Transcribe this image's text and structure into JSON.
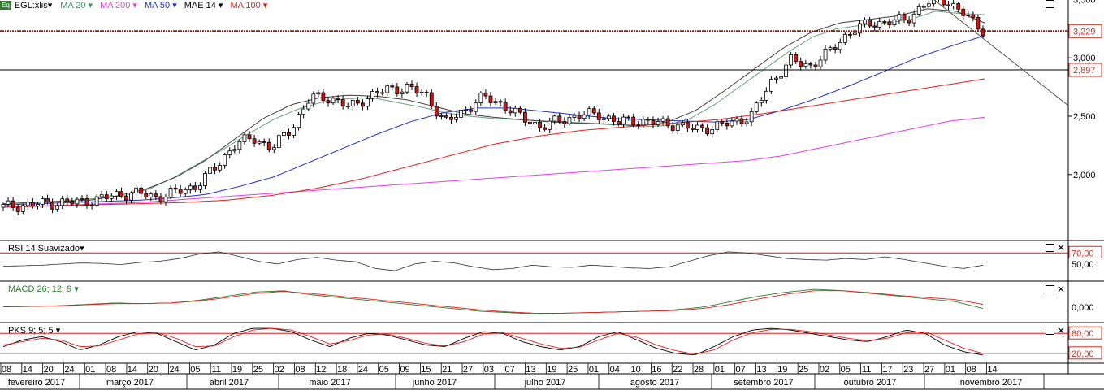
{
  "legend": {
    "badge": "Eq",
    "symbol": "EGL:xlis",
    "indicators": [
      {
        "label": "MA 20",
        "color": "#3a9a5a"
      },
      {
        "label": "MA 200",
        "color": "#e040e0"
      },
      {
        "label": "MA 50",
        "color": "#2030d0"
      },
      {
        "label": "MAE 14",
        "color": "#000000"
      },
      {
        "label": "MA 100",
        "color": "#e02020"
      }
    ]
  },
  "panels": {
    "rsi": {
      "title": "RSI 14 Suavizado",
      "levels": [
        "70,00",
        "50,00"
      ]
    },
    "macd": {
      "title": "MACD 26; 12; 9",
      "levels": [
        "0,000"
      ]
    },
    "pks": {
      "title": "PKS 9; 5; 5",
      "levels": [
        "80,00",
        "20,00"
      ]
    }
  },
  "chart_data": {
    "type": "candlestick",
    "y_ticks": [
      "3,500",
      "3,000",
      "2,500",
      "2,000"
    ],
    "price_tags": [
      {
        "label": "3,229",
        "value": 3.229,
        "color": "#d03020"
      },
      {
        "label": "2,897",
        "value": 2.897,
        "color": "#d03020"
      }
    ],
    "x_ticks": [
      "08",
      "14",
      "20",
      "24",
      "01",
      "08",
      "14",
      "20",
      "24",
      "05",
      "11",
      "19",
      "25",
      "02",
      "08",
      "12",
      "18",
      "24",
      "05",
      "09",
      "15",
      "21",
      "27",
      "03",
      "07",
      "13",
      "19",
      "25",
      "01",
      "04",
      "10",
      "16",
      "22",
      "28",
      "01",
      "07",
      "13",
      "19",
      "25",
      "02",
      "05",
      "11",
      "17",
      "23",
      "27",
      "01",
      "08",
      "14"
    ],
    "months": [
      "fevereiro 2017",
      "março 2017",
      "abril 2017",
      "maio 2017",
      "junho 2017",
      "julho 2017",
      "agosto 2017",
      "setembro 2017",
      "outubro 2017",
      "novembro 2017"
    ],
    "ohlc_anchors": [
      [
        1.72,
        1.73
      ],
      [
        1.74,
        1.73
      ],
      [
        1.75,
        1.75
      ],
      [
        1.76,
        1.76
      ],
      [
        1.77,
        1.76
      ],
      [
        1.78,
        1.8
      ],
      [
        1.84,
        1.82
      ],
      [
        1.86,
        1.82
      ],
      [
        1.8,
        1.81
      ],
      [
        1.84,
        1.86
      ],
      [
        1.88,
        1.92
      ],
      [
        2.0,
        2.1
      ],
      [
        2.2,
        2.3
      ],
      [
        2.35,
        2.28
      ],
      [
        2.2,
        2.25
      ],
      [
        2.35,
        2.45
      ],
      [
        2.62,
        2.7
      ],
      [
        2.7,
        2.62
      ],
      [
        2.55,
        2.6
      ],
      [
        2.65,
        2.68
      ],
      [
        2.72,
        2.74
      ],
      [
        2.75,
        2.74
      ],
      [
        2.72,
        2.65
      ],
      [
        2.5,
        2.38
      ],
      [
        2.45,
        2.65
      ],
      [
        2.68,
        2.65
      ],
      [
        2.62,
        2.58
      ],
      [
        2.52,
        2.45
      ],
      [
        2.42,
        2.4
      ],
      [
        2.45,
        2.48
      ],
      [
        2.5,
        2.52
      ],
      [
        2.53,
        2.5
      ],
      [
        2.48,
        2.42
      ],
      [
        2.46,
        2.47
      ],
      [
        2.46,
        2.42
      ],
      [
        2.44,
        2.42
      ],
      [
        2.4,
        2.37
      ],
      [
        2.4,
        2.42
      ],
      [
        2.43,
        2.46
      ],
      [
        2.48,
        2.55
      ],
      [
        2.7,
        2.9
      ],
      [
        2.95,
        3.0
      ],
      [
        2.96,
        2.9
      ],
      [
        3.0,
        3.1
      ],
      [
        3.18,
        3.25
      ],
      [
        3.28,
        3.3
      ],
      [
        3.3,
        3.32
      ],
      [
        3.3,
        3.35
      ],
      [
        3.38,
        3.55
      ],
      [
        3.52,
        3.48
      ],
      [
        3.45,
        3.3
      ],
      [
        3.25,
        3.229
      ]
    ],
    "series": [
      {
        "name": "MA 20",
        "anchors": [
          1.75,
          1.76,
          1.77,
          1.78,
          1.8,
          1.82,
          1.88,
          1.98,
          2.1,
          2.22,
          2.35,
          2.47,
          2.56,
          2.62,
          2.65,
          2.66,
          2.62,
          2.58,
          2.53,
          2.5,
          2.48,
          2.47,
          2.46,
          2.45,
          2.44,
          2.43,
          2.41,
          2.42,
          2.48,
          2.6,
          2.75,
          2.9,
          3.05,
          3.18,
          3.25,
          3.28,
          3.3,
          3.33,
          3.4,
          3.38,
          3.37
        ]
      },
      {
        "name": "MA 200",
        "anchors": [
          1.72,
          1.73,
          1.74,
          1.75,
          1.76,
          1.78,
          1.8,
          1.82,
          1.84,
          1.86,
          1.88,
          1.9,
          1.92,
          1.94,
          1.96,
          1.98,
          2.0,
          2.02,
          2.04,
          2.06,
          2.08,
          2.1,
          2.12,
          2.16,
          2.22,
          2.28,
          2.34,
          2.4,
          2.46,
          2.49
        ]
      },
      {
        "name": "MA 50",
        "anchors": [
          1.74,
          1.75,
          1.76,
          1.77,
          1.78,
          1.8,
          1.83,
          1.9,
          1.98,
          2.1,
          2.22,
          2.34,
          2.45,
          2.53,
          2.57,
          2.57,
          2.54,
          2.51,
          2.48,
          2.47,
          2.46,
          2.45,
          2.47,
          2.55,
          2.65,
          2.76,
          2.88,
          3.0,
          3.1,
          3.19
        ]
      },
      {
        "name": "MAE 14",
        "anchors": [
          1.75,
          1.76,
          1.77,
          1.78,
          1.82,
          1.88,
          1.98,
          2.12,
          2.3,
          2.48,
          2.6,
          2.66,
          2.68,
          2.67,
          2.64,
          2.58,
          2.52,
          2.49,
          2.47,
          2.45,
          2.44,
          2.43,
          2.42,
          2.45,
          2.55,
          2.72,
          2.9,
          3.08,
          3.22,
          3.3,
          3.33,
          3.36,
          3.42,
          3.4,
          3.3
        ]
      },
      {
        "name": "MA 100",
        "anchors": [
          1.72,
          1.73,
          1.74,
          1.75,
          1.76,
          1.78,
          1.82,
          1.88,
          1.96,
          2.06,
          2.16,
          2.26,
          2.33,
          2.38,
          2.41,
          2.44,
          2.47,
          2.52,
          2.58,
          2.64,
          2.7,
          2.76,
          2.82
        ]
      }
    ],
    "rsi": {
      "anchors": [
        46,
        47,
        48,
        50,
        52,
        51,
        49,
        53,
        55,
        60,
        68,
        72,
        64,
        55,
        50,
        58,
        62,
        57,
        54,
        42,
        38,
        50,
        55,
        52,
        45,
        40,
        42,
        48,
        45,
        44,
        48,
        46,
        43,
        42,
        45,
        55,
        65,
        72,
        70,
        65,
        60,
        58,
        57,
        60,
        58,
        63,
        58,
        52,
        46,
        42,
        48
      ],
      "levels": [
        70,
        50
      ],
      "ylim": [
        25,
        85
      ]
    },
    "macd": {
      "series": [
        {
          "name": "MACD",
          "anchors": [
            0.005,
            0.01,
            0.02,
            0.04,
            0.06,
            0.05,
            0.06,
            0.1,
            0.16,
            0.22,
            0.24,
            0.18,
            0.14,
            0.1,
            0.06,
            0.02,
            -0.02,
            -0.06,
            -0.08,
            -0.1,
            -0.09,
            -0.08,
            -0.07,
            -0.06,
            -0.04,
            0.0,
            0.08,
            0.16,
            0.22,
            0.26,
            0.24,
            0.2,
            0.16,
            0.12,
            0.08,
            -0.02
          ]
        },
        {
          "name": "Sinal",
          "anchors": [
            0.004,
            0.009,
            0.018,
            0.035,
            0.05,
            0.05,
            0.06,
            0.09,
            0.14,
            0.2,
            0.23,
            0.2,
            0.16,
            0.12,
            0.08,
            0.04,
            0.0,
            -0.04,
            -0.07,
            -0.09,
            -0.09,
            -0.08,
            -0.07,
            -0.06,
            -0.05,
            -0.02,
            0.04,
            0.12,
            0.19,
            0.24,
            0.24,
            0.21,
            0.17,
            0.14,
            0.11,
            0.04
          ]
        }
      ],
      "ylim": [
        -0.18,
        0.32
      ]
    },
    "pks": {
      "series": [
        {
          "name": "K",
          "anchors": [
            40,
            60,
            70,
            55,
            30,
            45,
            70,
            85,
            80,
            55,
            30,
            45,
            80,
            95,
            95,
            85,
            60,
            40,
            65,
            80,
            75,
            60,
            45,
            40,
            65,
            85,
            80,
            55,
            40,
            30,
            40,
            70,
            85,
            60,
            35,
            20,
            15,
            40,
            70,
            90,
            95,
            90,
            80,
            70,
            60,
            55,
            70,
            90,
            80,
            45,
            25,
            15
          ]
        },
        {
          "name": "D",
          "anchors": [
            45,
            55,
            65,
            60,
            40,
            42,
            60,
            78,
            82,
            65,
            40,
            42,
            70,
            90,
            95,
            90,
            70,
            48,
            58,
            75,
            78,
            65,
            50,
            42,
            55,
            78,
            82,
            65,
            48,
            35,
            38,
            60,
            80,
            68,
            45,
            28,
            18,
            30,
            60,
            82,
            92,
            92,
            85,
            75,
            65,
            58,
            65,
            82,
            85,
            60,
            35,
            20
          ]
        }
      ],
      "levels": [
        80,
        20
      ],
      "ylim": [
        0,
        100
      ]
    },
    "trendline": {
      "from": [
        0.826,
        3.66
      ],
      "to": [
        0.968,
        2.8
      ]
    }
  },
  "colors": {
    "up_body": "#ffffff",
    "down_body": "#c81818",
    "wick": "#000000",
    "grid": "#000000",
    "tag_red": "#d03020",
    "dotted": "#8b1a1a",
    "rsi_line": "#303030",
    "rsi_band": "#d02020",
    "macd_line": "#2e7d32",
    "signal_line": "#e02020",
    "pks_k": "#000000",
    "pks_d": "#e02020",
    "trend": "#505050"
  }
}
